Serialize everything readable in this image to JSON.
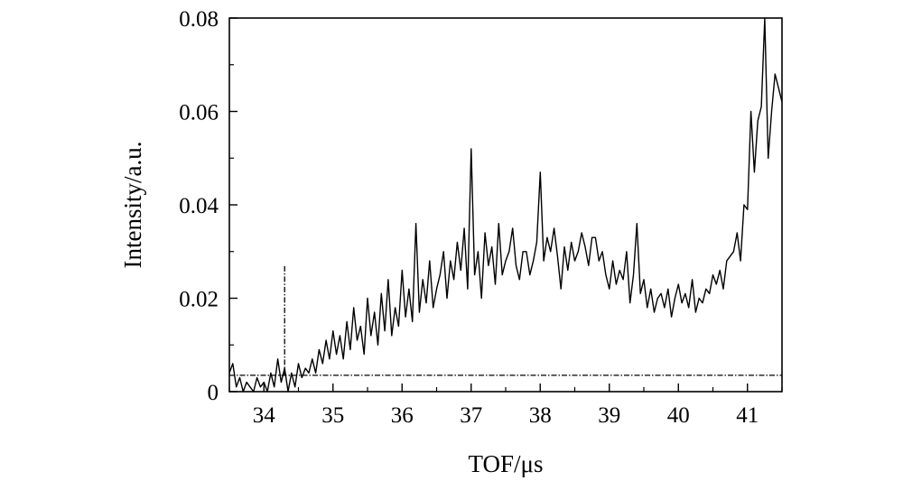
{
  "chart_data": {
    "type": "line",
    "title": "",
    "xlabel": "TOF/μs",
    "ylabel": "Intensity/a.u.",
    "xlim": [
      33.5,
      41.5
    ],
    "ylim": [
      0,
      0.08
    ],
    "x_ticks": [
      34,
      35,
      36,
      37,
      38,
      39,
      40,
      41
    ],
    "x_tick_labels": [
      "34",
      "35",
      "36",
      "37",
      "38",
      "39",
      "40",
      "41"
    ],
    "y_ticks": [
      0,
      0.02,
      0.04,
      0.06,
      0.08
    ],
    "y_tick_labels": [
      "0",
      "0.02",
      "0.04",
      "0.06",
      "0.08"
    ],
    "grid": false,
    "series": [
      {
        "color": "#000000",
        "x": [
          33.5,
          33.55,
          33.6,
          33.65,
          33.7,
          33.75,
          33.8,
          33.85,
          33.9,
          33.95,
          34.0,
          34.05,
          34.1,
          34.15,
          34.2,
          34.25,
          34.3,
          34.35,
          34.4,
          34.45,
          34.5,
          34.55,
          34.6,
          34.65,
          34.7,
          34.75,
          34.8,
          34.85,
          34.9,
          34.95,
          35.0,
          35.05,
          35.1,
          35.15,
          35.2,
          35.25,
          35.3,
          35.35,
          35.4,
          35.45,
          35.5,
          35.55,
          35.6,
          35.65,
          35.7,
          35.75,
          35.8,
          35.85,
          35.9,
          35.95,
          36.0,
          36.05,
          36.1,
          36.15,
          36.2,
          36.25,
          36.3,
          36.35,
          36.4,
          36.45,
          36.5,
          36.55,
          36.6,
          36.65,
          36.7,
          36.75,
          36.8,
          36.85,
          36.9,
          36.95,
          37.0,
          37.05,
          37.1,
          37.15,
          37.2,
          37.25,
          37.3,
          37.35,
          37.4,
          37.45,
          37.5,
          37.55,
          37.6,
          37.65,
          37.7,
          37.75,
          37.8,
          37.85,
          37.9,
          37.95,
          38.0,
          38.05,
          38.1,
          38.15,
          38.2,
          38.25,
          38.3,
          38.35,
          38.4,
          38.45,
          38.5,
          38.55,
          38.6,
          38.65,
          38.7,
          38.75,
          38.8,
          38.85,
          38.9,
          38.95,
          39.0,
          39.05,
          39.1,
          39.15,
          39.2,
          39.25,
          39.3,
          39.35,
          39.4,
          39.45,
          39.5,
          39.55,
          39.6,
          39.65,
          39.7,
          39.75,
          39.8,
          39.85,
          39.9,
          39.95,
          40.0,
          40.05,
          40.1,
          40.15,
          40.2,
          40.25,
          40.3,
          40.35,
          40.4,
          40.45,
          40.5,
          40.55,
          40.6,
          40.65,
          40.7,
          40.75,
          40.8,
          40.85,
          40.9,
          40.95,
          41.0,
          41.05,
          41.1,
          41.15,
          41.2,
          41.25,
          41.3,
          41.35,
          41.4,
          41.45,
          41.5
        ],
        "y": [
          0.004,
          0.006,
          0.001,
          0.003,
          0.0,
          0.002,
          0.001,
          0.0,
          0.003,
          0.001,
          0.002,
          0.0,
          0.004,
          0.001,
          0.007,
          0.002,
          0.005,
          0.0,
          0.004,
          0.001,
          0.006,
          0.003,
          0.005,
          0.004,
          0.007,
          0.004,
          0.009,
          0.006,
          0.011,
          0.007,
          0.013,
          0.008,
          0.012,
          0.007,
          0.015,
          0.009,
          0.018,
          0.011,
          0.014,
          0.008,
          0.02,
          0.012,
          0.017,
          0.01,
          0.021,
          0.013,
          0.024,
          0.012,
          0.018,
          0.014,
          0.026,
          0.016,
          0.022,
          0.015,
          0.036,
          0.017,
          0.024,
          0.019,
          0.028,
          0.018,
          0.022,
          0.025,
          0.03,
          0.02,
          0.028,
          0.024,
          0.032,
          0.026,
          0.035,
          0.022,
          0.052,
          0.025,
          0.03,
          0.02,
          0.034,
          0.027,
          0.031,
          0.023,
          0.036,
          0.025,
          0.028,
          0.03,
          0.035,
          0.027,
          0.024,
          0.03,
          0.03,
          0.025,
          0.028,
          0.032,
          0.047,
          0.028,
          0.033,
          0.03,
          0.035,
          0.029,
          0.022,
          0.031,
          0.026,
          0.032,
          0.028,
          0.03,
          0.034,
          0.031,
          0.027,
          0.033,
          0.033,
          0.028,
          0.03,
          0.025,
          0.022,
          0.028,
          0.023,
          0.026,
          0.024,
          0.03,
          0.019,
          0.025,
          0.036,
          0.021,
          0.024,
          0.018,
          0.022,
          0.017,
          0.02,
          0.021,
          0.018,
          0.022,
          0.016,
          0.02,
          0.023,
          0.019,
          0.021,
          0.018,
          0.024,
          0.017,
          0.02,
          0.019,
          0.022,
          0.021,
          0.025,
          0.023,
          0.026,
          0.022,
          0.028,
          0.029,
          0.03,
          0.034,
          0.028,
          0.04,
          0.039,
          0.06,
          0.047,
          0.058,
          0.061,
          0.08,
          0.05,
          0.06,
          0.068,
          0.065,
          0.062
        ]
      }
    ],
    "annotations": [
      {
        "type": "vline",
        "style": "dash-dot",
        "x": 34.3,
        "y_from": 0.0035,
        "y_to": 0.027
      },
      {
        "type": "hline",
        "style": "dash-dot",
        "y": 0.0035,
        "x_from": 33.5,
        "x_to": 41.5
      }
    ]
  }
}
